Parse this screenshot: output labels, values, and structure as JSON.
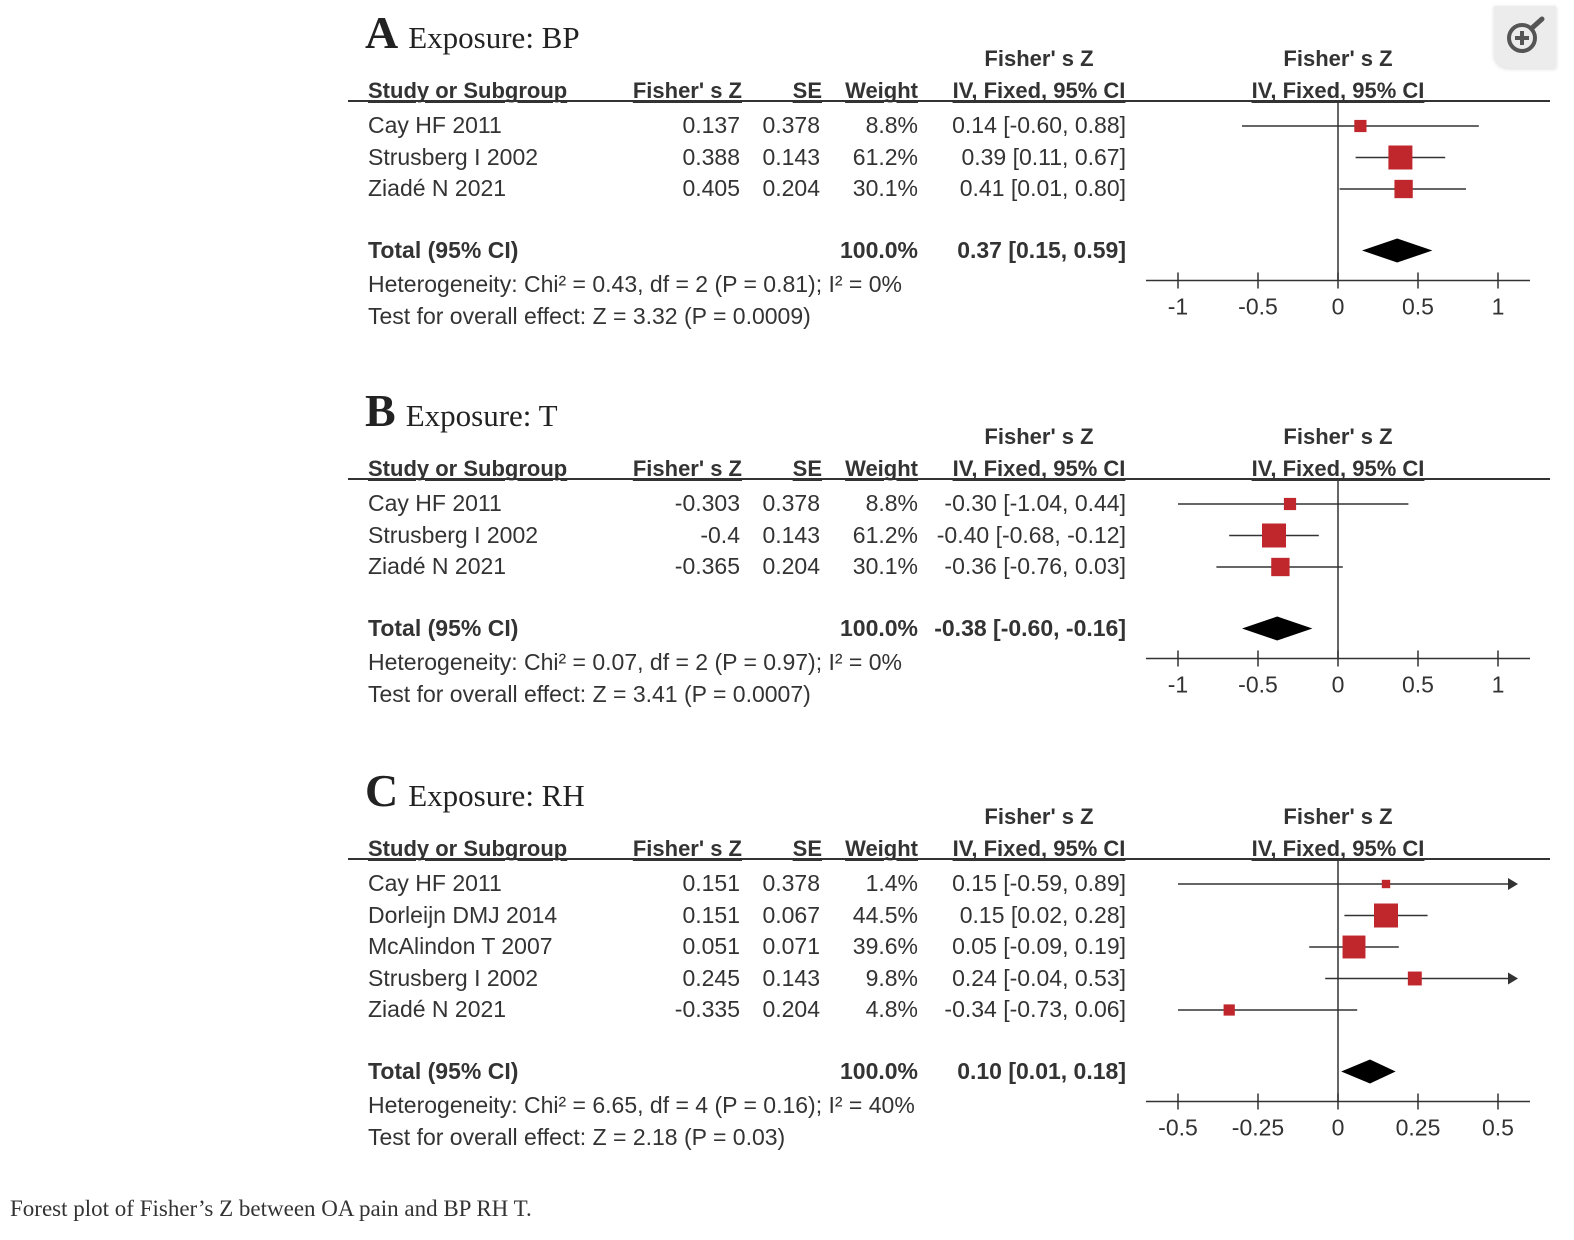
{
  "zoom_button": {
    "icon": "zoom-in-icon"
  },
  "caption": "Forest plot of Fisher’s Z between OA pain and BP RH T.",
  "columns": {
    "study": "Study or Subgroup",
    "fz": "Fisher' s Z",
    "se": "SE",
    "weight": "Weight",
    "ci_top": "Fisher' s Z",
    "ci_bottom": "IV, Fixed, 95% CI",
    "plot_top": "Fisher' s Z",
    "plot_bottom": "IV, Fixed, 95% CI"
  },
  "colors": {
    "study_marker": "#c0272d",
    "diamond": "#000000",
    "lines": "#333333"
  },
  "chart_data": [
    {
      "type": "forest",
      "letter": "A",
      "title": "Exposure: BP",
      "studies": [
        {
          "name": "Cay HF 2011",
          "fz": "0.137",
          "se": "0.378",
          "weight": "8.8%",
          "ci": "0.14 [-0.60, 0.88]",
          "est": 0.14,
          "lo": -0.6,
          "hi": 0.88,
          "w": 8.8
        },
        {
          "name": "Strusberg I 2002",
          "fz": "0.388",
          "se": "0.143",
          "weight": "61.2%",
          "ci": "0.39 [0.11, 0.67]",
          "est": 0.39,
          "lo": 0.11,
          "hi": 0.67,
          "w": 61.2
        },
        {
          "name": "Ziadé N 2021",
          "fz": "0.405",
          "se": "0.204",
          "weight": "30.1%",
          "ci": "0.41 [0.01, 0.80]",
          "est": 0.41,
          "lo": 0.01,
          "hi": 0.8,
          "w": 30.1
        }
      ],
      "total": {
        "label": "Total (95% CI)",
        "weight": "100.0%",
        "ci": "0.37 [0.15, 0.59]",
        "est": 0.37,
        "lo": 0.15,
        "hi": 0.59
      },
      "heterogeneity": "Heterogeneity: Chi² = 0.43, df = 2 (P = 0.81); I² = 0%",
      "overall": "Test for overall effect: Z = 3.32 (P = 0.0009)",
      "xlim": [
        -1,
        1
      ],
      "ticks": [
        -1,
        -0.5,
        0,
        0.5,
        1
      ],
      "tick_labels": [
        "-1",
        "-0.5",
        "0",
        "0.5",
        "1"
      ]
    },
    {
      "type": "forest",
      "letter": "B",
      "title": "Exposure: T",
      "studies": [
        {
          "name": "Cay HF 2011",
          "fz": "-0.303",
          "se": "0.378",
          "weight": "8.8%",
          "ci": "-0.30 [-1.04, 0.44]",
          "est": -0.3,
          "lo": -1.04,
          "hi": 0.44,
          "w": 8.8
        },
        {
          "name": "Strusberg I 2002",
          "fz": "-0.4",
          "se": "0.143",
          "weight": "61.2%",
          "ci": "-0.40 [-0.68, -0.12]",
          "est": -0.4,
          "lo": -0.68,
          "hi": -0.12,
          "w": 61.2
        },
        {
          "name": "Ziadé N 2021",
          "fz": "-0.365",
          "se": "0.204",
          "weight": "30.1%",
          "ci": "-0.36 [-0.76, 0.03]",
          "est": -0.36,
          "lo": -0.76,
          "hi": 0.03,
          "w": 30.1
        }
      ],
      "total": {
        "label": "Total (95% CI)",
        "weight": "100.0%",
        "ci": "-0.38 [-0.60, -0.16]",
        "est": -0.38,
        "lo": -0.6,
        "hi": -0.16
      },
      "heterogeneity": "Heterogeneity: Chi² = 0.07, df = 2 (P = 0.97); I² = 0%",
      "overall": "Test for overall effect: Z = 3.41 (P = 0.0007)",
      "xlim": [
        -1,
        1
      ],
      "ticks": [
        -1,
        -0.5,
        0,
        0.5,
        1
      ],
      "tick_labels": [
        "-1",
        "-0.5",
        "0",
        "0.5",
        "1"
      ]
    },
    {
      "type": "forest",
      "letter": "C",
      "title": "Exposure: RH",
      "studies": [
        {
          "name": "Cay HF 2011",
          "fz": "0.151",
          "se": "0.378",
          "weight": "1.4%",
          "ci": "0.15 [-0.59, 0.89]",
          "est": 0.15,
          "lo": -0.59,
          "hi": 0.89,
          "w": 1.4
        },
        {
          "name": "Dorleijn DMJ 2014",
          "fz": "0.151",
          "se": "0.067",
          "weight": "44.5%",
          "ci": "0.15 [0.02, 0.28]",
          "est": 0.15,
          "lo": 0.02,
          "hi": 0.28,
          "w": 44.5
        },
        {
          "name": "McAlindon T 2007",
          "fz": "0.051",
          "se": "0.071",
          "weight": "39.6%",
          "ci": "0.05 [-0.09, 0.19]",
          "est": 0.05,
          "lo": -0.09,
          "hi": 0.19,
          "w": 39.6
        },
        {
          "name": "Strusberg I 2002",
          "fz": "0.245",
          "se": "0.143",
          "weight": "9.8%",
          "ci": "0.24 [-0.04, 0.53]",
          "est": 0.24,
          "lo": -0.04,
          "hi": 0.53,
          "w": 9.8
        },
        {
          "name": "Ziadé N 2021",
          "fz": "-0.335",
          "se": "0.204",
          "weight": "4.8%",
          "ci": "-0.34 [-0.73, 0.06]",
          "est": -0.34,
          "lo": -0.73,
          "hi": 0.06,
          "w": 4.8
        }
      ],
      "total": {
        "label": "Total (95% CI)",
        "weight": "100.0%",
        "ci": "0.10 [0.01, 0.18]",
        "est": 0.1,
        "lo": 0.01,
        "hi": 0.18
      },
      "heterogeneity": "Heterogeneity: Chi² = 6.65, df = 4 (P = 0.16); I² = 40%",
      "overall": "Test for overall effect: Z = 2.18 (P = 0.03)",
      "xlim": [
        -0.5,
        0.5
      ],
      "ticks": [
        -0.5,
        -0.25,
        0,
        0.25,
        0.5
      ],
      "tick_labels": [
        "-0.5",
        "-0.25",
        "0",
        "0.25",
        "0.5"
      ]
    }
  ]
}
